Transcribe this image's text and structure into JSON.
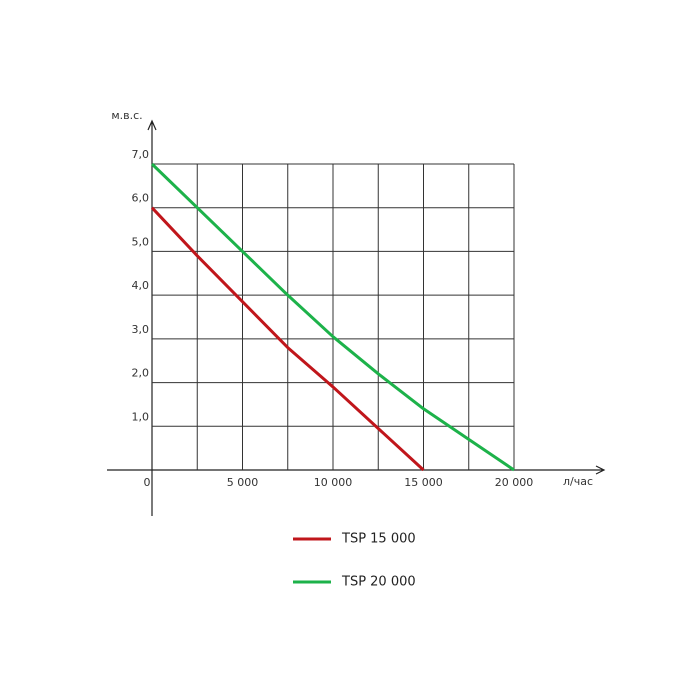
{
  "chart_data": {
    "type": "line",
    "ylabel": "м.в.с.",
    "xlabel": "л/час",
    "xlim": [
      0,
      20000
    ],
    "ylim": [
      0,
      7
    ],
    "xticks": [
      0,
      {
        "value": 5000,
        "label": "5 000"
      },
      {
        "value": 10000,
        "label": "10 000"
      },
      {
        "value": 15000,
        "label": "15 000"
      },
      {
        "value": 20000,
        "label": "20 000"
      }
    ],
    "xminor_ticks": [
      2500,
      7500,
      12500,
      17500
    ],
    "yticks": [
      {
        "value": 1,
        "label": "1,0"
      },
      {
        "value": 2,
        "label": "2,0"
      },
      {
        "value": 3,
        "label": "3,0"
      },
      {
        "value": 4,
        "label": "4,0"
      },
      {
        "value": 5,
        "label": "5,0"
      },
      {
        "value": 6,
        "label": "6,0"
      },
      {
        "value": 7,
        "label": "7,0"
      }
    ],
    "grid": true,
    "series": [
      {
        "name": "TSP 15 000",
        "color": "#c0161b",
        "x": [
          0,
          2500,
          5000,
          7500,
          10000,
          12500,
          15000
        ],
        "values": [
          6,
          4.9,
          3.85,
          2.8,
          1.9,
          0.95,
          0
        ]
      },
      {
        "name": "TSP 20 000",
        "color": "#1db24a",
        "x": [
          0,
          2500,
          5000,
          7500,
          10000,
          12500,
          15000,
          17500,
          20000
        ],
        "values": [
          7,
          6.0,
          5.0,
          4.0,
          3.05,
          2.2,
          1.4,
          0.7,
          0
        ]
      }
    ]
  }
}
